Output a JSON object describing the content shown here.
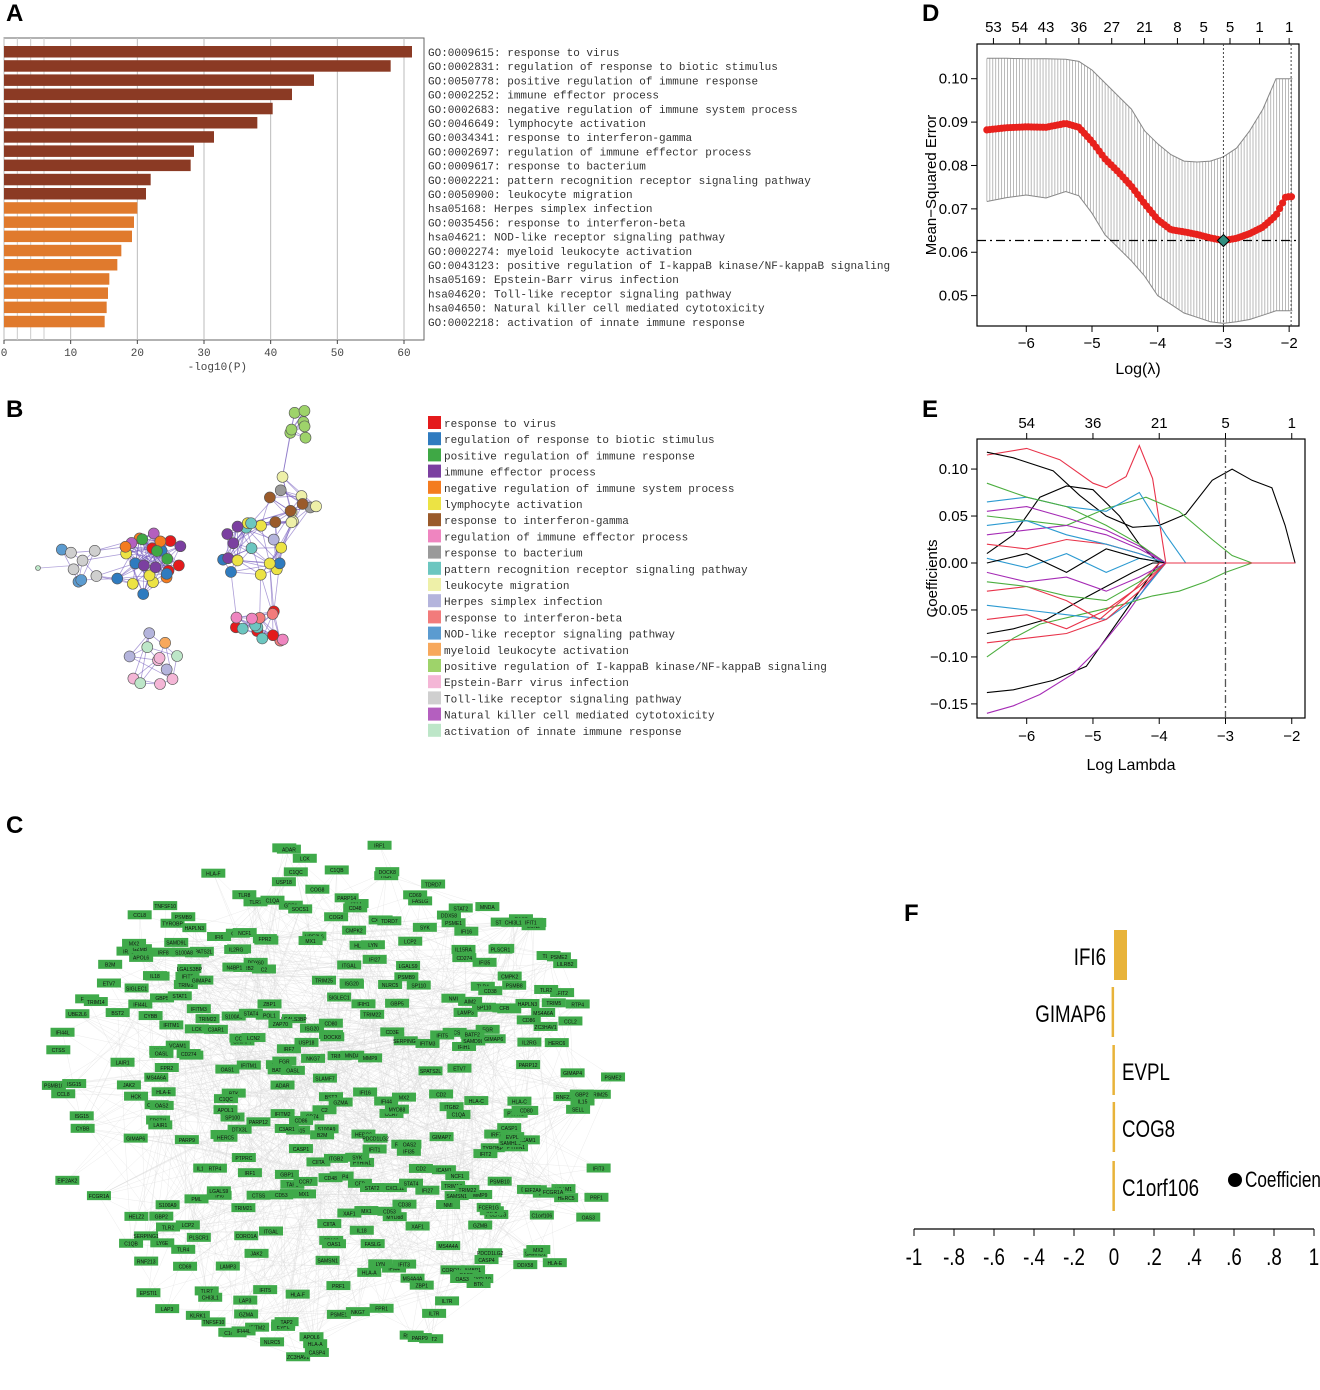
{
  "panel_labels": [
    "A",
    "B",
    "C",
    "D",
    "E",
    "F"
  ],
  "chart_data": [
    {
      "panel": "A",
      "type": "bar",
      "orientation": "horizontal",
      "xlabel": "-log10(P)",
      "xticks": [
        0,
        10,
        20,
        30,
        40,
        50,
        60
      ],
      "xlim": [
        0,
        63
      ],
      "colors": {
        "strong": "#8b3a24",
        "weak": "#e07a2d"
      },
      "categories": [
        "GO:0009615: response to virus",
        "GO:0002831: regulation of response to biotic stimulus",
        "GO:0050778: positive regulation of immune response",
        "GO:0002252: immune effector process",
        "GO:0002683: negative regulation of immune system process",
        "GO:0046649: lymphocyte activation",
        "GO:0034341: response to interferon-gamma",
        "GO:0002697: regulation of immune effector process",
        "GO:0009617: response to bacterium",
        "GO:0002221: pattern recognition receptor signaling pathway",
        "GO:0050900: leukocyte migration",
        "hsa05168: Herpes simplex infection",
        "GO:0035456: response to interferon-beta",
        "hsa04621: NOD-like receptor signaling pathway",
        "GO:0002274: myeloid leukocyte activation",
        "GO:0043123: positive regulation of I-kappaB kinase/NF-kappaB signaling",
        "hsa05169: Epstein-Barr virus infection",
        "hsa04620: Toll-like receptor signaling pathway",
        "hsa04650: Natural killer cell mediated cytotoxicity",
        "GO:0002218: activation of innate immune response"
      ],
      "values": [
        61.2,
        58.0,
        46.5,
        43.2,
        40.3,
        38.0,
        31.5,
        28.5,
        28.0,
        22.0,
        21.3,
        20.0,
        19.5,
        19.2,
        17.6,
        17.0,
        15.8,
        15.6,
        15.4,
        15.1
      ]
    },
    {
      "panel": "D",
      "type": "line",
      "title": "",
      "xlabel": "Log(λ)",
      "ylabel": "Mean−Squared Error",
      "xlim": [
        -6.75,
        -1.85
      ],
      "ylim": [
        0.043,
        0.108
      ],
      "xticks": [
        -6,
        -5,
        -4,
        -3,
        -2
      ],
      "xtick_labels": [
        "−6",
        "−5",
        "−4",
        "−3",
        "−2"
      ],
      "yticks": [
        0.05,
        0.06,
        0.07,
        0.08,
        0.09,
        0.1
      ],
      "ytick_labels": [
        "0.05",
        "0.06",
        "0.07",
        "0.08",
        "0.09",
        "0.10"
      ],
      "top_axis_labels": [
        "53",
        "54",
        "43",
        "36",
        "27",
        "21",
        "8",
        "5",
        "5",
        "1",
        "1"
      ],
      "top_axis_x": [
        -6.5,
        -6.1,
        -5.7,
        -5.2,
        -4.7,
        -4.2,
        -3.7,
        -3.3,
        -2.9,
        -2.45,
        -2.0
      ],
      "vlines": [
        -3.0,
        -1.97
      ],
      "hline": 0.0627,
      "optimum": {
        "x": -3.0,
        "y": 0.0627
      },
      "curve_x": [
        -6.6,
        -6.3,
        -6.0,
        -5.7,
        -5.4,
        -5.2,
        -5.0,
        -4.8,
        -4.6,
        -4.4,
        -4.2,
        -4.0,
        -3.8,
        -3.6,
        -3.4,
        -3.2,
        -3.0,
        -2.8,
        -2.6,
        -2.4,
        -2.2,
        -2.05,
        -1.95
      ],
      "curve_y": [
        0.0882,
        0.0887,
        0.0889,
        0.0888,
        0.0897,
        0.0888,
        0.0855,
        0.0815,
        0.0785,
        0.0752,
        0.0712,
        0.0675,
        0.0652,
        0.0647,
        0.0641,
        0.0633,
        0.0627,
        0.0632,
        0.0643,
        0.0658,
        0.0685,
        0.0728,
        0.0728
      ],
      "upper_y": [
        0.1047,
        0.1047,
        0.1046,
        0.1046,
        0.1045,
        0.104,
        0.102,
        0.099,
        0.096,
        0.093,
        0.088,
        0.085,
        0.0825,
        0.081,
        0.0808,
        0.081,
        0.082,
        0.084,
        0.088,
        0.093,
        0.1,
        0.1,
        0.1
      ],
      "lower_y": [
        0.0717,
        0.0726,
        0.0732,
        0.0725,
        0.074,
        0.073,
        0.069,
        0.064,
        0.061,
        0.058,
        0.0545,
        0.05,
        0.048,
        0.046,
        0.045,
        0.044,
        0.0436,
        0.044,
        0.0445,
        0.0455,
        0.0465,
        0.0465,
        0.0465
      ],
      "colors": {
        "curve": "#e8211c",
        "errorbar": "#a8a8a8",
        "optimum": "#2f8f7f"
      }
    },
    {
      "panel": "E",
      "type": "line",
      "xlabel": "Log Lambda",
      "ylabel": "Coefficients",
      "xlim": [
        -6.75,
        -1.8
      ],
      "ylim": [
        -0.165,
        0.132
      ],
      "xticks": [
        -6,
        -5,
        -4,
        -3,
        -2
      ],
      "xtick_labels": [
        "−6",
        "−5",
        "−4",
        "−3",
        "−2"
      ],
      "yticks": [
        -0.15,
        -0.1,
        -0.05,
        0.0,
        0.05,
        0.1
      ],
      "ytick_labels": [
        "−0.15",
        "−0.10",
        "−0.05",
        "0.00",
        "0.05",
        "0.10"
      ],
      "top_axis_labels": [
        "54",
        "36",
        "21",
        "5",
        "1"
      ],
      "top_axis_x": [
        -6.0,
        -5.0,
        -4.0,
        -3.0,
        -2.0
      ],
      "vline": -3.0,
      "series": [
        {
          "color": "#e8334a",
          "x": [
            -6.6,
            -6.0,
            -5.5,
            -5.0,
            -4.8,
            -4.5,
            -4.3,
            -4.1,
            -3.9
          ],
          "y": [
            0.115,
            0.122,
            0.11,
            0.085,
            0.08,
            0.092,
            0.125,
            0.09,
            0.0
          ]
        },
        {
          "color": "#000000",
          "x": [
            -6.6,
            -6.2,
            -5.6,
            -5.2,
            -4.8,
            -4.4,
            -4.0,
            -3.6,
            -3.2,
            -2.9,
            -2.6,
            -2.3,
            -2.1,
            -1.95
          ],
          "y": [
            0.118,
            0.112,
            0.098,
            0.072,
            0.05,
            0.038,
            0.04,
            0.052,
            0.088,
            0.1,
            0.088,
            0.08,
            0.04,
            0.0
          ]
        },
        {
          "color": "#000000",
          "x": [
            -6.6,
            -6.2,
            -5.6,
            -5.1,
            -4.8,
            -4.5,
            -4.2,
            -4.0
          ],
          "y": [
            -0.138,
            -0.135,
            -0.125,
            -0.11,
            -0.08,
            -0.05,
            -0.02,
            0.0
          ]
        },
        {
          "color": "#000000",
          "x": [
            -6.6,
            -6.2,
            -5.8,
            -5.4,
            -5.0,
            -4.6,
            -4.3,
            -4.0
          ],
          "y": [
            0.01,
            0.03,
            0.07,
            0.082,
            0.078,
            0.05,
            0.02,
            0.0
          ]
        },
        {
          "color": "#000000",
          "x": [
            -6.6,
            -6.2,
            -5.7,
            -5.2,
            -4.8,
            -4.4,
            -4.1
          ],
          "y": [
            -0.075,
            -0.07,
            -0.06,
            -0.04,
            -0.025,
            -0.01,
            0.0
          ]
        },
        {
          "color": "#a52bb5",
          "x": [
            -6.6,
            -6.2,
            -5.8,
            -5.3,
            -4.9,
            -4.5,
            -4.2,
            -3.9
          ],
          "y": [
            -0.16,
            -0.152,
            -0.14,
            -0.118,
            -0.09,
            -0.055,
            -0.025,
            0.0
          ]
        },
        {
          "color": "#4cae3f",
          "x": [
            -6.6,
            -6.2,
            -5.8,
            -5.2,
            -4.6,
            -4.1,
            -3.7,
            -3.3,
            -3.0,
            -2.6
          ],
          "y": [
            -0.1,
            -0.08,
            -0.065,
            -0.055,
            -0.045,
            -0.035,
            -0.03,
            -0.02,
            -0.01,
            0.0
          ]
        },
        {
          "color": "#4cae3f",
          "x": [
            -6.6,
            -6.0,
            -5.4,
            -4.8,
            -4.2,
            -3.7,
            -3.2,
            -2.9,
            -2.6
          ],
          "y": [
            0.05,
            0.045,
            0.04,
            0.058,
            0.07,
            0.055,
            0.025,
            0.008,
            0.0
          ]
        },
        {
          "color": "#2c9ad1",
          "x": [
            -6.6,
            -6.0,
            -5.4,
            -4.8,
            -4.3,
            -3.9,
            -3.6
          ],
          "y": [
            0.065,
            0.07,
            0.06,
            0.055,
            0.075,
            0.03,
            0.0
          ]
        },
        {
          "color": "#2c9ad1",
          "x": [
            -6.6,
            -6.0,
            -5.4,
            -4.8,
            -4.3,
            -3.9
          ],
          "y": [
            -0.045,
            -0.05,
            -0.055,
            -0.06,
            -0.035,
            0.0
          ]
        },
        {
          "color": "#e8334a",
          "x": [
            -6.6,
            -6.0,
            -5.4,
            -4.9,
            -4.4,
            -4.0
          ],
          "y": [
            -0.03,
            -0.025,
            -0.04,
            -0.06,
            -0.03,
            0.0
          ]
        },
        {
          "color": "#a52bb5",
          "x": [
            -6.6,
            -6.0,
            -5.4,
            -4.8,
            -4.3,
            -3.9
          ],
          "y": [
            0.03,
            0.035,
            0.04,
            0.03,
            0.015,
            0.0
          ]
        },
        {
          "color": "#e8334a",
          "x": [
            -6.6,
            -6.0,
            -5.4,
            -4.8,
            -4.3,
            -3.9
          ],
          "y": [
            0.02,
            0.015,
            0.025,
            0.02,
            0.01,
            0.0
          ]
        },
        {
          "color": "#2c9ad1",
          "x": [
            -6.6,
            -6.0,
            -5.4,
            -4.8,
            -4.3,
            -3.9
          ],
          "y": [
            0.04,
            0.045,
            0.03,
            0.02,
            0.01,
            0.0
          ]
        },
        {
          "color": "#4cae3f",
          "x": [
            -6.6,
            -6.0,
            -5.4,
            -4.8,
            -4.3,
            -3.9
          ],
          "y": [
            -0.02,
            -0.025,
            -0.035,
            -0.04,
            -0.02,
            0.0
          ]
        },
        {
          "color": "#a52bb5",
          "x": [
            -6.6,
            -6.0,
            -5.4,
            -4.8,
            -4.3,
            -3.9
          ],
          "y": [
            -0.01,
            -0.02,
            -0.015,
            -0.03,
            -0.015,
            0.0
          ]
        },
        {
          "color": "#e8334a",
          "x": [
            -6.6,
            -6.0,
            -5.4,
            -4.8,
            -4.3,
            -3.9
          ],
          "y": [
            -0.06,
            -0.055,
            -0.07,
            -0.05,
            -0.025,
            0.0
          ]
        },
        {
          "color": "#2c9ad1",
          "x": [
            -6.6,
            -6.0,
            -5.4,
            -4.8,
            -4.3,
            -3.9
          ],
          "y": [
            0.005,
            -0.005,
            0.01,
            -0.01,
            0.005,
            0.0
          ]
        },
        {
          "color": "#4cae3f",
          "x": [
            -6.6,
            -6.0,
            -5.4,
            -4.8,
            -4.3,
            -3.9
          ],
          "y": [
            0.085,
            0.07,
            0.06,
            0.04,
            0.02,
            0.0
          ]
        },
        {
          "color": "#000000",
          "x": [
            -6.6,
            -6.0,
            -5.4,
            -4.8,
            -4.3,
            -3.9
          ],
          "y": [
            0.0,
            0.01,
            -0.01,
            0.015,
            0.005,
            0.0
          ]
        },
        {
          "color": "#a52bb5",
          "x": [
            -6.6,
            -6.0,
            -5.4,
            -4.8,
            -4.3,
            -3.9
          ],
          "y": [
            0.055,
            0.06,
            0.048,
            0.035,
            0.018,
            0.0
          ]
        },
        {
          "color": "#e8334a",
          "x": [
            -6.6,
            -6.0,
            -5.4,
            -4.8,
            -4.3,
            -3.9
          ],
          "y": [
            -0.085,
            -0.08,
            -0.075,
            -0.06,
            -0.03,
            0.0
          ]
        }
      ]
    },
    {
      "panel": "F",
      "type": "bar",
      "orientation": "horizontal",
      "legend": "Coefficient",
      "xlim": [
        -1,
        1
      ],
      "xticks": [
        -1,
        -0.8,
        -0.6,
        -0.4,
        -0.2,
        0,
        0.2,
        0.4,
        0.6,
        0.8,
        1
      ],
      "xtick_labels": [
        "-1",
        "-.8",
        "-.6",
        "-.4",
        "-.2",
        "0",
        ".2",
        ".4",
        ".6",
        ".8",
        "1"
      ],
      "categories": [
        "IFI6",
        "GIMAP6",
        "EVPL",
        "COG8",
        "C1orf106"
      ],
      "values": [
        0.065,
        -0.012,
        -0.008,
        -0.007,
        -0.008
      ],
      "color": "#e8b33a"
    }
  ],
  "panel_b": {
    "legend": [
      {
        "label": "response to virus",
        "color": "#e41a1c"
      },
      {
        "label": "regulation of response to biotic stimulus",
        "color": "#2f7bbf"
      },
      {
        "label": "positive regulation of immune response",
        "color": "#3fa845"
      },
      {
        "label": "immune effector process",
        "color": "#7b3fa0"
      },
      {
        "label": "negative regulation of immune system process",
        "color": "#f47c20"
      },
      {
        "label": "lymphocyte activation",
        "color": "#ece344"
      },
      {
        "label": "response to interferon-gamma",
        "color": "#9a5a2a"
      },
      {
        "label": "regulation of immune effector process",
        "color": "#ef85c0"
      },
      {
        "label": "response to bacterium",
        "color": "#9a9a9a"
      },
      {
        "label": "pattern recognition receptor signaling pathway",
        "color": "#6cc6c0"
      },
      {
        "label": "leukocyte migration",
        "color": "#eef0a8"
      },
      {
        "label": "Herpes simplex infection",
        "color": "#b4b4dc"
      },
      {
        "label": "response to interferon-beta",
        "color": "#f27b7b"
      },
      {
        "label": "NOD-like receptor signaling pathway",
        "color": "#5b9bd0"
      },
      {
        "label": "myeloid leukocyte activation",
        "color": "#f7a85c"
      },
      {
        "label": "positive regulation of I-kappaB kinase/NF-kappaB signaling",
        "color": "#9ed36a"
      },
      {
        "label": "Epstein-Barr virus infection",
        "color": "#f4b6d6"
      },
      {
        "label": "Toll-like receptor signaling pathway",
        "color": "#cfcfcf"
      },
      {
        "label": "Natural killer cell mediated cytotoxicity",
        "color": "#b45fbf"
      },
      {
        "label": "activation of innate immune response",
        "color": "#bde6c8"
      }
    ],
    "edge_color": "#6a4fb8"
  },
  "panel_c": {
    "node_color": "#3faa4a",
    "edge_color": "#d6d6d6",
    "genes": [
      "TRIM22",
      "IFI44L",
      "OAS1",
      "OAS2",
      "OAS3",
      "MX1",
      "MX2",
      "ISG15",
      "IFIT1",
      "IFIT2",
      "IFIT3",
      "IFIT5",
      "RSAD2",
      "HERC5",
      "HERC6",
      "USP18",
      "STAT1",
      "STAT2",
      "IRF7",
      "IRF9",
      "IFI6",
      "IFI27",
      "IFI35",
      "IFI44",
      "IFITM1",
      "IFITM2",
      "IFITM3",
      "GBP1",
      "GBP2",
      "GBP4",
      "GBP5",
      "PARP9",
      "PARP12",
      "PARP14",
      "DDX58",
      "DDX60",
      "IFIH1",
      "EPSTI1",
      "SAMD9L",
      "XAF1",
      "BST2",
      "LY6E",
      "CMPK2",
      "PLSCR1",
      "SP100",
      "SP110",
      "TAP1",
      "TAP2",
      "PSMB8",
      "PSMB9",
      "HLA-A",
      "HLA-B",
      "HLA-C",
      "HLA-E",
      "HLA-F",
      "B2M",
      "CD74",
      "CIITA",
      "CXCL10",
      "CXCL11",
      "CCL2",
      "CCL8",
      "TLR2",
      "TLR4",
      "TLR7",
      "TLR8",
      "MYD88",
      "CASP1",
      "CASP4",
      "NLRC5",
      "AIM2",
      "ZBP1",
      "TNFSF10",
      "SOCS1",
      "LGALS3BP",
      "LGALS9",
      "LAP3",
      "SAMHD1",
      "TRIM21",
      "TRIM5",
      "UBE2L6",
      "EIF2AK2",
      "DTX3L",
      "APOL1",
      "APOL6",
      "BATF2",
      "CD38",
      "FCGR1A",
      "SIGLEC1",
      "LAMP3",
      "ICAM1",
      "VCAM1",
      "SELL",
      "PTPRC",
      "LCP2",
      "CD53",
      "CORO1A",
      "LCK",
      "ZAP70",
      "CD3E",
      "CD2",
      "CD48",
      "SLAMF7",
      "NKG7",
      "GZMA",
      "GZMB",
      "PRF1",
      "KLRK1",
      "FASLG",
      "GIMAP6",
      "GIMAP4",
      "GIMAP7",
      "EVPL",
      "COG8",
      "C1orf106",
      "DOCK8",
      "SAMSN1",
      "IL18",
      "IL15",
      "IL15RA",
      "CD274",
      "PDCD1LG2",
      "JAK2",
      "IRF1",
      "IRF8",
      "NMI",
      "PML",
      "HELZ2",
      "RTP4",
      "ADAR",
      "ISG20",
      "OASL",
      "IFI16",
      "MNDA",
      "PYHIN1",
      "FCER1G",
      "TYROBP",
      "LYN",
      "HCK",
      "FGR",
      "SYK",
      "BTK",
      "CYBB",
      "NCF1",
      "ITGB2",
      "ITGAL",
      "CTSS",
      "LAIR1",
      "LILRB2",
      "CD86",
      "CD80",
      "MS4A4A",
      "MS4A6A",
      "C1QA",
      "C1QB",
      "C1QC",
      "C3AR1",
      "FPR1",
      "FPR2",
      "S100A8",
      "S100A9",
      "LCN2",
      "MMP9",
      "CHI3L1",
      "SERPING1",
      "CFB",
      "C2",
      "PSMB10",
      "PSME1",
      "PSME2",
      "HAPLN3",
      "ETV7",
      "SPATS2L",
      "TDRD7",
      "TRIM14",
      "TRIM25",
      "RNF213",
      "N4BP1",
      "ZC3HAV1",
      "STAT4",
      "IL2RG",
      "IL7R",
      "CCR7",
      "CD69"
    ]
  }
}
